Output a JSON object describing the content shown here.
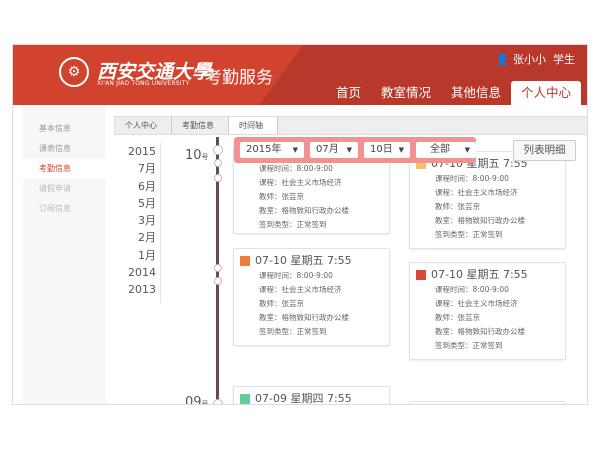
{
  "header": {
    "university_cn": "西安交通大學",
    "university_en": "XI'AN JIAO TONG UNIVERSITY",
    "system_title": "考勤服务",
    "user_name": "张小小",
    "user_role": "学生",
    "nav": [
      {
        "label": "首页"
      },
      {
        "label": "教室情况"
      },
      {
        "label": "其他信息"
      },
      {
        "label": "个人中心"
      }
    ]
  },
  "sidebar": {
    "items": [
      {
        "label": "基本信息"
      },
      {
        "label": "课表信息"
      },
      {
        "label": "考勤信息"
      },
      {
        "label": "请假申请"
      },
      {
        "label": "订阅信息"
      }
    ]
  },
  "breadcrumb": [
    {
      "label": "个人中心"
    },
    {
      "label": "考勤信息"
    },
    {
      "label": "时间轴"
    }
  ],
  "years": [
    "2015",
    "7月",
    "6月",
    "5月",
    "3月",
    "2月",
    "1月",
    "2014",
    "2013"
  ],
  "filter": {
    "year": "2015年",
    "month": "07月",
    "day": "10日",
    "type": "全部"
  },
  "list_button": "列表明细",
  "days": [
    {
      "num": "10",
      "unit": "号"
    },
    {
      "num": "09",
      "unit": "号"
    }
  ],
  "colors": {
    "brand": "#b8382c",
    "filter": "#f29191"
  },
  "cards": [
    {
      "title": "",
      "lines": [
        "课程时间：8:00-9:00",
        "课程：社会主义市场经济",
        "教师：张芸京",
        "教室：格物致知行政办公楼",
        "签到类型：正常签到"
      ]
    },
    {
      "title": "07-10 星期五 7:55",
      "icon_color": "#f5c06a",
      "lines": [
        "课程时间：8:00-9:00",
        "课程：社会主义市场经济",
        "教师：张芸京",
        "教室：格物致知行政办公楼",
        "签到类型：正常签到"
      ]
    },
    {
      "title": "07-10 星期五 7:55",
      "icon_color": "#ef7b3c",
      "lines": [
        "课程时间：8:00-9:00",
        "课程：社会主义市场经济",
        "教师：张芸京",
        "教室：格物致知行政办公楼",
        "签到类型：正常签到"
      ]
    },
    {
      "title": "07-10 星期五 7:55",
      "icon_color": "#d9483b",
      "lines": [
        "课程时间：8:00-9:00",
        "课程：社会主义市场经济",
        "教师：张芸京",
        "教室：格物致知行政办公楼",
        "签到类型：正常签到"
      ]
    },
    {
      "title": "07-09 星期四 7:55",
      "icon_color": "#5ccf9a",
      "lines": []
    }
  ]
}
